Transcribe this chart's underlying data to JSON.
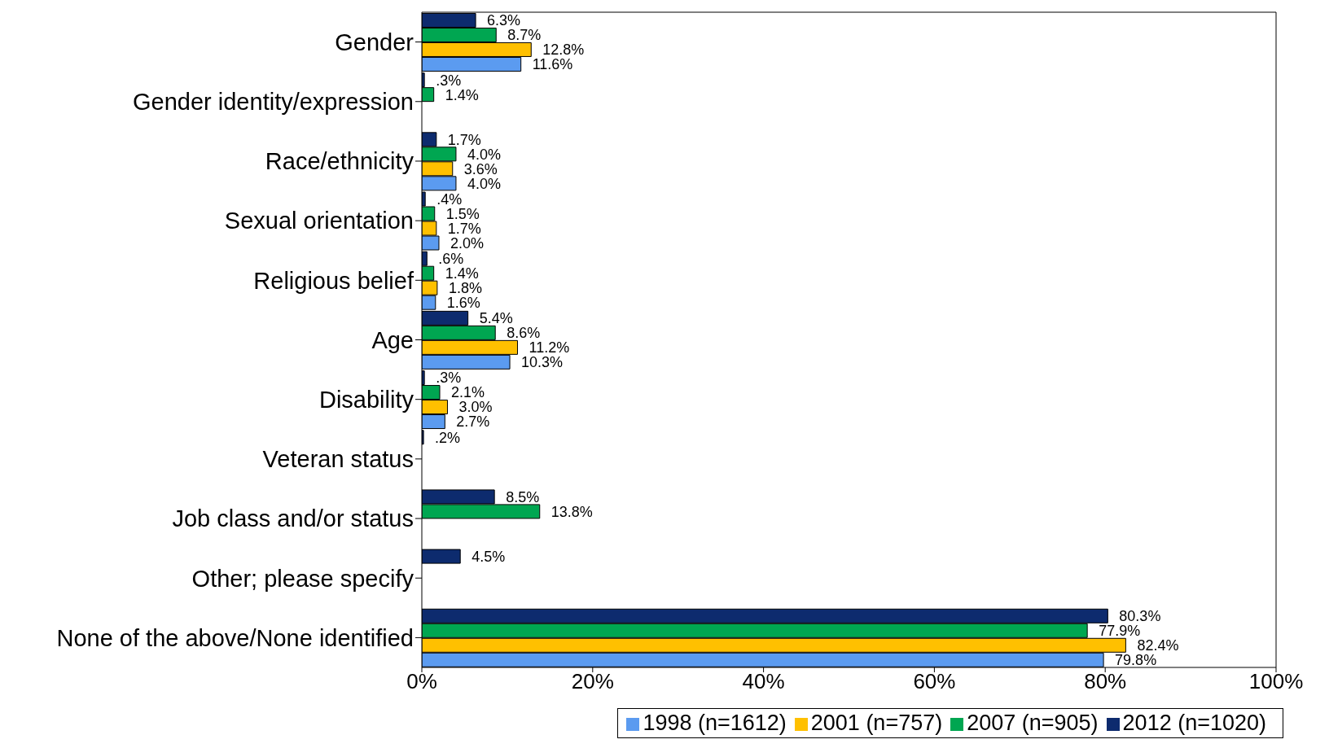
{
  "chart_data": {
    "type": "bar",
    "orientation": "horizontal",
    "categories": [
      "Gender",
      "Gender identity/expression",
      "Race/ethnicity",
      "Sexual orientation",
      "Religious belief",
      "Age",
      "Disability",
      "Veteran status",
      "Job class and/or status",
      "Other; please specify",
      "None of the above/None identified"
    ],
    "series": [
      {
        "name": "2012 (n=1020)",
        "color": "#0d2b6e",
        "values": [
          6.3,
          0.3,
          1.7,
          0.4,
          0.6,
          5.4,
          0.3,
          0.2,
          8.5,
          4.5,
          80.3
        ],
        "value_labels": [
          "6.3%",
          ".3%",
          "1.7%",
          ".4%",
          ".6%",
          "5.4%",
          ".3%",
          ".2%",
          "8.5%",
          "4.5%",
          "80.3%"
        ]
      },
      {
        "name": "2007 (n=905)",
        "color": "#00a651",
        "values": [
          8.7,
          1.4,
          4.0,
          1.5,
          1.4,
          8.6,
          2.1,
          null,
          13.8,
          null,
          77.9
        ],
        "value_labels": [
          "8.7%",
          "1.4%",
          "4.0%",
          "1.5%",
          "1.4%",
          "8.6%",
          "2.1%",
          null,
          "13.8%",
          null,
          "77.9%"
        ]
      },
      {
        "name": "2001 (n=757)",
        "color": "#ffc000",
        "values": [
          12.8,
          null,
          3.6,
          1.7,
          1.8,
          11.2,
          3.0,
          null,
          null,
          null,
          82.4
        ],
        "value_labels": [
          "12.8%",
          null,
          "3.6%",
          "1.7%",
          "1.8%",
          "11.2%",
          "3.0%",
          null,
          null,
          null,
          "82.4%"
        ]
      },
      {
        "name": "1998 (n=1612)",
        "color": "#5b9bf0",
        "values": [
          11.6,
          null,
          4.0,
          2.0,
          1.6,
          10.3,
          2.7,
          null,
          null,
          null,
          79.8
        ],
        "value_labels": [
          "11.6%",
          null,
          "4.0%",
          "2.0%",
          "1.6%",
          "10.3%",
          "2.7%",
          null,
          null,
          null,
          "79.8%"
        ]
      }
    ],
    "xlim": [
      0,
      100
    ],
    "xticks": [
      {
        "value": 0,
        "label": "0%"
      },
      {
        "value": 20,
        "label": "20%"
      },
      {
        "value": 40,
        "label": "40%"
      },
      {
        "value": 60,
        "label": "60%"
      },
      {
        "value": 80,
        "label": "80%"
      },
      {
        "value": 100,
        "label": "100%"
      }
    ],
    "grid": false,
    "legend": "bottom"
  }
}
